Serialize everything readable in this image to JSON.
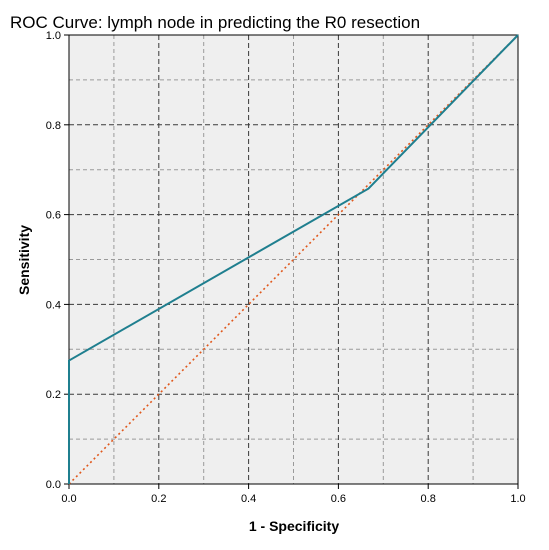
{
  "chart_data": {
    "type": "line",
    "title": "ROC Curve: lymph node in predicting the R0 resection",
    "xlabel": "1 - Specificity",
    "ylabel": "Sensitivity",
    "xlim": [
      0,
      1
    ],
    "ylim": [
      0,
      1
    ],
    "x_ticks": [
      "0.0",
      "0.2",
      "0.4",
      "0.6",
      "0.8",
      "1.0"
    ],
    "y_ticks": [
      "0.0",
      "0.2",
      "0.4",
      "0.6",
      "0.8",
      "1.0"
    ],
    "grid": true,
    "series": [
      {
        "values": [
          [
            0.0,
            0.0
          ],
          [
            0.0,
            0.275
          ],
          [
            0.667,
            0.658
          ],
          [
            1.0,
            1.0
          ]
        ],
        "color": "#1f7f8f",
        "style": "solid"
      },
      {
        "values": [
          [
            0.0,
            0.0
          ],
          [
            1.0,
            1.0
          ]
        ],
        "color": "#e0581c",
        "style": "dotted"
      }
    ],
    "plot_background": "#efefef"
  }
}
